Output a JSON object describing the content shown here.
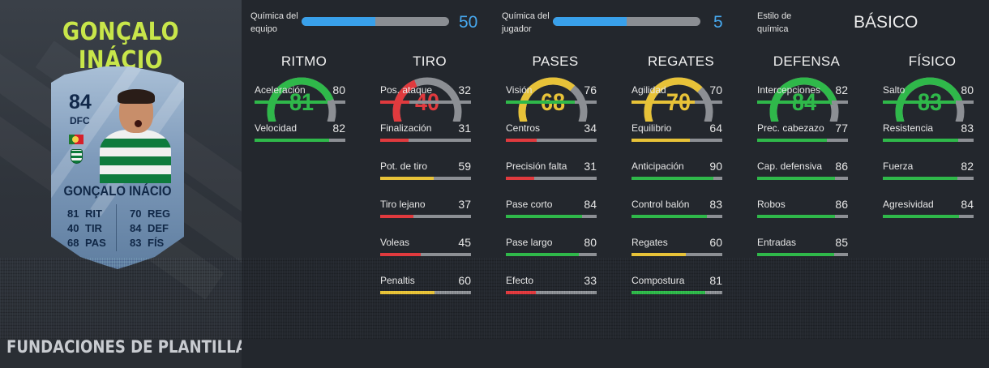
{
  "header": {
    "player_title": "GONÇALO INÁCIO",
    "footer_title": "FUNDACIONES DE PLANTILLA"
  },
  "card": {
    "rating": "84",
    "position": "DFC",
    "name": "GONÇALO INÁCIO",
    "stats_left": [
      {
        "value": "81",
        "label": "RIT"
      },
      {
        "value": "40",
        "label": "TIR"
      },
      {
        "value": "68",
        "label": "PAS"
      }
    ],
    "stats_right": [
      {
        "value": "70",
        "label": "REG"
      },
      {
        "value": "84",
        "label": "DEF"
      },
      {
        "value": "83",
        "label": "FÍS"
      }
    ]
  },
  "chemistry": {
    "team_label": "Química del equipo",
    "team_value": "50",
    "team_fraction": 0.5,
    "player_label": "Química del jugador",
    "player_value": "5",
    "player_fraction": 0.5,
    "style_label": "Estilo de química",
    "style_value": "BÁSICO"
  },
  "colors": {
    "green": "#2fb84a",
    "yellow": "#e7c238",
    "red": "#e03a3e",
    "accent_blue": "#39a0ea",
    "title_green": "#c8e64a"
  },
  "columns": [
    {
      "title": "RITMO",
      "value": "81",
      "score": 81,
      "color": "#2fb84a",
      "stats": [
        {
          "name": "Aceleración",
          "value": "80",
          "score": 80,
          "color": "#2fb84a"
        },
        {
          "name": "Velocidad",
          "value": "82",
          "score": 82,
          "color": "#2fb84a"
        }
      ]
    },
    {
      "title": "TIRO",
      "value": "40",
      "score": 40,
      "color": "#e03a3e",
      "stats": [
        {
          "name": "Pos. ataque",
          "value": "32",
          "score": 32,
          "color": "#e03a3e"
        },
        {
          "name": "Finalización",
          "value": "31",
          "score": 31,
          "color": "#e03a3e"
        },
        {
          "name": "Pot. de tiro",
          "value": "59",
          "score": 59,
          "color": "#e7c238"
        },
        {
          "name": "Tiro lejano",
          "value": "37",
          "score": 37,
          "color": "#e03a3e"
        },
        {
          "name": "Voleas",
          "value": "45",
          "score": 45,
          "color": "#e03a3e"
        },
        {
          "name": "Penaltis",
          "value": "60",
          "score": 60,
          "color": "#e7c238"
        }
      ]
    },
    {
      "title": "PASES",
      "value": "68",
      "score": 68,
      "color": "#e7c238",
      "stats": [
        {
          "name": "Visión",
          "value": "76",
          "score": 76,
          "color": "#2fb84a"
        },
        {
          "name": "Centros",
          "value": "34",
          "score": 34,
          "color": "#e03a3e"
        },
        {
          "name": "Precisión falta",
          "value": "31",
          "score": 31,
          "color": "#e03a3e"
        },
        {
          "name": "Pase corto",
          "value": "84",
          "score": 84,
          "color": "#2fb84a"
        },
        {
          "name": "Pase largo",
          "value": "80",
          "score": 80,
          "color": "#2fb84a"
        },
        {
          "name": "Efecto",
          "value": "33",
          "score": 33,
          "color": "#e03a3e"
        }
      ]
    },
    {
      "title": "REGATES",
      "value": "70",
      "score": 70,
      "color": "#e7c238",
      "stats": [
        {
          "name": "Agilidad",
          "value": "70",
          "score": 70,
          "color": "#e7c238"
        },
        {
          "name": "Equilibrio",
          "value": "64",
          "score": 64,
          "color": "#e7c238"
        },
        {
          "name": "Anticipación",
          "value": "90",
          "score": 90,
          "color": "#2fb84a"
        },
        {
          "name": "Control balón",
          "value": "83",
          "score": 83,
          "color": "#2fb84a"
        },
        {
          "name": "Regates",
          "value": "60",
          "score": 60,
          "color": "#e7c238"
        },
        {
          "name": "Compostura",
          "value": "81",
          "score": 81,
          "color": "#2fb84a"
        }
      ]
    },
    {
      "title": "DEFENSA",
      "value": "84",
      "score": 84,
      "color": "#2fb84a",
      "stats": [
        {
          "name": "Intercepciones",
          "value": "82",
          "score": 82,
          "color": "#2fb84a"
        },
        {
          "name": "Prec. cabezazo",
          "value": "77",
          "score": 77,
          "color": "#2fb84a"
        },
        {
          "name": "Cap. defensiva",
          "value": "86",
          "score": 86,
          "color": "#2fb84a"
        },
        {
          "name": "Robos",
          "value": "86",
          "score": 86,
          "color": "#2fb84a"
        },
        {
          "name": "Entradas",
          "value": "85",
          "score": 85,
          "color": "#2fb84a"
        }
      ]
    },
    {
      "title": "FÍSICO",
      "value": "83",
      "score": 83,
      "color": "#2fb84a",
      "stats": [
        {
          "name": "Salto",
          "value": "80",
          "score": 80,
          "color": "#2fb84a"
        },
        {
          "name": "Resistencia",
          "value": "83",
          "score": 83,
          "color": "#2fb84a"
        },
        {
          "name": "Fuerza",
          "value": "82",
          "score": 82,
          "color": "#2fb84a"
        },
        {
          "name": "Agresividad",
          "value": "84",
          "score": 84,
          "color": "#2fb84a"
        }
      ]
    }
  ]
}
